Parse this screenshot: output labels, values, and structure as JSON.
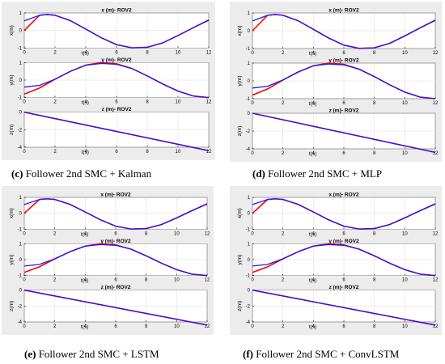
{
  "colors": {
    "reference": "#ff0000",
    "follower": "#1a1aff",
    "plot_bg": "#ffffff",
    "figure_bg": "#ececec",
    "axis": "#000000",
    "grid": "#d9d9d9"
  },
  "captions": [
    {
      "letter": "(c)",
      "text": " Follower 2nd SMC + Kalman"
    },
    {
      "letter": "(d)",
      "text": " Follower 2nd SMC + MLP"
    },
    {
      "letter": "(e)",
      "text": " Follower 2nd SMC + LSTM"
    },
    {
      "letter": "(f)",
      "text": " Follower 2nd SMC + ConvLSTM"
    }
  ],
  "chart_data": [
    {
      "panel": "c",
      "type": "line",
      "title": "x (m)- ROV2",
      "xlabel": "t(s)",
      "ylabel": "x(m)",
      "xlim": [
        0,
        12
      ],
      "ylim": [
        -1,
        1
      ],
      "xticks": [
        0,
        2,
        4,
        6,
        8,
        10,
        12
      ],
      "yticks": [
        -1,
        0,
        1
      ],
      "x": [
        0,
        1,
        1.5,
        2,
        3,
        4,
        5,
        6,
        7,
        8,
        9,
        10,
        11,
        12
      ],
      "series": [
        {
          "values": [
            0.0,
            0.87,
            0.91,
            0.87,
            0.56,
            0.08,
            -0.41,
            -0.81,
            -0.99,
            -0.96,
            -0.71,
            -0.29,
            0.16,
            0.6
          ]
        },
        {
          "values": [
            0.55,
            0.87,
            0.91,
            0.87,
            0.56,
            0.08,
            -0.41,
            -0.81,
            -0.99,
            -0.96,
            -0.71,
            -0.29,
            0.16,
            0.58
          ]
        }
      ]
    },
    {
      "panel": "c",
      "type": "line",
      "title": "y (m)- ROV2",
      "xlabel": "t(s)",
      "ylabel": "y(m)",
      "xlim": [
        0,
        12
      ],
      "ylim": [
        -1,
        1
      ],
      "xticks": [
        0,
        2,
        4,
        6,
        8,
        10,
        12
      ],
      "yticks": [
        -1,
        0,
        1
      ],
      "x": [
        0,
        1,
        2,
        3,
        4,
        5,
        6,
        7,
        8,
        9,
        10,
        11,
        12
      ],
      "series": [
        {
          "values": [
            -0.8,
            -0.45,
            0.05,
            0.5,
            0.85,
            1.0,
            0.93,
            0.66,
            0.24,
            -0.22,
            -0.63,
            -0.91,
            -1.0
          ]
        },
        {
          "values": [
            -0.4,
            -0.3,
            0.05,
            0.5,
            0.85,
            0.95,
            0.9,
            0.66,
            0.24,
            -0.22,
            -0.63,
            -0.91,
            -1.0
          ]
        }
      ]
    },
    {
      "panel": "c",
      "type": "line",
      "title": "z (m)- ROV2",
      "xlabel": "t(s)",
      "ylabel": "z(m)",
      "xlim": [
        0,
        12
      ],
      "ylim": [
        -4,
        0
      ],
      "xticks": [
        0,
        2,
        4,
        6,
        8,
        10,
        12
      ],
      "yticks": [
        -4,
        -2,
        0
      ],
      "x": [
        0,
        12
      ],
      "series": [
        {
          "values": [
            0.0,
            -4.4
          ]
        },
        {
          "values": [
            0.0,
            -4.4
          ]
        }
      ]
    },
    {
      "panel": "d",
      "type": "line",
      "title": "x (m)- ROV2",
      "xlabel": "t(s)",
      "ylabel": "x(m)",
      "xlim": [
        0,
        12
      ],
      "ylim": [
        -1,
        1
      ],
      "xticks": [
        0,
        2,
        4,
        6,
        8,
        10,
        12
      ],
      "yticks": [
        -1,
        0,
        1
      ],
      "x": [
        0,
        1,
        1.5,
        2,
        3,
        4,
        5,
        6,
        7,
        8,
        9,
        10,
        11,
        12
      ],
      "series": [
        {
          "values": [
            0.0,
            0.87,
            0.91,
            0.87,
            0.56,
            0.08,
            -0.41,
            -0.81,
            -0.99,
            -0.96,
            -0.71,
            -0.29,
            0.16,
            0.6
          ]
        },
        {
          "values": [
            0.55,
            0.87,
            0.91,
            0.87,
            0.56,
            0.08,
            -0.41,
            -0.81,
            -0.99,
            -0.96,
            -0.71,
            -0.29,
            0.16,
            0.58
          ]
        }
      ]
    },
    {
      "panel": "d",
      "type": "line",
      "title": "y (m)- ROV2",
      "xlabel": "t(s)",
      "ylabel": "y(m)",
      "xlim": [
        0,
        12
      ],
      "ylim": [
        -1,
        1
      ],
      "xticks": [
        0,
        2,
        4,
        6,
        8,
        10,
        12
      ],
      "yticks": [
        -1,
        0,
        1
      ],
      "x": [
        0,
        1,
        2,
        3,
        4,
        5,
        6,
        7,
        8,
        9,
        10,
        11,
        12
      ],
      "series": [
        {
          "values": [
            -0.8,
            -0.45,
            0.05,
            0.5,
            0.85,
            1.0,
            0.93,
            0.66,
            0.24,
            -0.22,
            -0.63,
            -0.91,
            -1.0
          ]
        },
        {
          "values": [
            -0.4,
            -0.3,
            0.05,
            0.5,
            0.85,
            0.95,
            0.9,
            0.66,
            0.24,
            -0.22,
            -0.63,
            -0.91,
            -1.0
          ]
        }
      ]
    },
    {
      "panel": "d",
      "type": "line",
      "title": "z (m)- ROV2",
      "xlabel": "t(s)",
      "ylabel": "z(m)",
      "xlim": [
        0,
        12
      ],
      "ylim": [
        -4,
        0
      ],
      "xticks": [
        0,
        2,
        4,
        6,
        8,
        10,
        12
      ],
      "yticks": [
        -4,
        -2,
        0
      ],
      "x": [
        0,
        12
      ],
      "series": [
        {
          "values": [
            0.0,
            -4.4
          ]
        },
        {
          "values": [
            0.0,
            -4.4
          ]
        }
      ]
    },
    {
      "panel": "e",
      "type": "line",
      "title": "x (m)- ROV2",
      "xlabel": "t(s)",
      "ylabel": "x(m)",
      "xlim": [
        0,
        12
      ],
      "ylim": [
        -1,
        1
      ],
      "xticks": [
        0,
        2,
        4,
        6,
        8,
        10,
        12
      ],
      "yticks": [
        -1,
        0,
        1
      ],
      "x": [
        0,
        1,
        1.5,
        2,
        3,
        4,
        5,
        6,
        7,
        8,
        9,
        10,
        11,
        12
      ],
      "series": [
        {
          "values": [
            0.0,
            0.87,
            0.91,
            0.87,
            0.56,
            0.08,
            -0.41,
            -0.81,
            -0.99,
            -0.96,
            -0.71,
            -0.29,
            0.16,
            0.6
          ]
        },
        {
          "values": [
            0.55,
            0.87,
            0.91,
            0.87,
            0.56,
            0.08,
            -0.41,
            -0.81,
            -0.99,
            -0.96,
            -0.71,
            -0.29,
            0.16,
            0.58
          ]
        }
      ]
    },
    {
      "panel": "e",
      "type": "line",
      "title": "y (m)- ROV2",
      "xlabel": "t(s)",
      "ylabel": "y(m)",
      "xlim": [
        0,
        12
      ],
      "ylim": [
        -1,
        1
      ],
      "xticks": [
        0,
        2,
        4,
        6,
        8,
        10,
        12
      ],
      "yticks": [
        -1,
        0,
        1
      ],
      "x": [
        0,
        1,
        2,
        3,
        4,
        5,
        6,
        7,
        8,
        9,
        10,
        11,
        12
      ],
      "series": [
        {
          "values": [
            -0.8,
            -0.45,
            0.05,
            0.5,
            0.85,
            1.0,
            0.93,
            0.66,
            0.24,
            -0.22,
            -0.63,
            -0.91,
            -1.0
          ]
        },
        {
          "values": [
            -0.4,
            -0.3,
            0.05,
            0.5,
            0.85,
            0.95,
            0.9,
            0.66,
            0.24,
            -0.22,
            -0.63,
            -0.91,
            -1.0
          ]
        }
      ]
    },
    {
      "panel": "e",
      "type": "line",
      "title": "z (m)- ROV2",
      "xlabel": "t(s)",
      "ylabel": "z(m)",
      "xlim": [
        0,
        12
      ],
      "ylim": [
        -4,
        0
      ],
      "xticks": [
        0,
        2,
        4,
        6,
        8,
        10,
        12
      ],
      "yticks": [
        -4,
        -2,
        0
      ],
      "x": [
        0,
        12
      ],
      "series": [
        {
          "values": [
            0.0,
            -4.4
          ]
        },
        {
          "values": [
            0.0,
            -4.4
          ]
        }
      ]
    },
    {
      "panel": "f",
      "type": "line",
      "title": "x (m)- ROV2",
      "xlabel": "t(s)",
      "ylabel": "x(m)",
      "xlim": [
        0,
        12
      ],
      "ylim": [
        -1,
        1
      ],
      "xticks": [
        0,
        2,
        4,
        6,
        8,
        10,
        12
      ],
      "yticks": [
        -1,
        0,
        1
      ],
      "x": [
        0,
        1,
        1.5,
        2,
        3,
        4,
        5,
        6,
        7,
        8,
        9,
        10,
        11,
        12
      ],
      "series": [
        {
          "values": [
            0.0,
            0.87,
            0.91,
            0.87,
            0.56,
            0.08,
            -0.41,
            -0.81,
            -0.99,
            -0.96,
            -0.71,
            -0.29,
            0.16,
            0.6
          ]
        },
        {
          "values": [
            0.55,
            0.87,
            0.91,
            0.87,
            0.56,
            0.08,
            -0.41,
            -0.81,
            -0.99,
            -0.96,
            -0.71,
            -0.29,
            0.16,
            0.58
          ]
        }
      ]
    },
    {
      "panel": "f",
      "type": "line",
      "title": "y (m)- ROV2",
      "xlabel": "t(s)",
      "ylabel": "y(m)",
      "xlim": [
        0,
        12
      ],
      "ylim": [
        -1,
        1
      ],
      "xticks": [
        0,
        2,
        4,
        6,
        8,
        10,
        12
      ],
      "yticks": [
        -1,
        0,
        1
      ],
      "x": [
        0,
        1,
        2,
        3,
        4,
        5,
        6,
        7,
        8,
        9,
        10,
        11,
        12
      ],
      "series": [
        {
          "values": [
            -0.8,
            -0.45,
            0.05,
            0.5,
            0.85,
            1.0,
            0.93,
            0.66,
            0.24,
            -0.22,
            -0.63,
            -0.91,
            -1.0
          ]
        },
        {
          "values": [
            -0.4,
            -0.3,
            0.05,
            0.5,
            0.85,
            0.95,
            0.9,
            0.66,
            0.24,
            -0.22,
            -0.63,
            -0.91,
            -1.0
          ]
        }
      ]
    },
    {
      "panel": "f",
      "type": "line",
      "title": "z (m)- ROV2",
      "xlabel": "t(s)",
      "ylabel": "z(m)",
      "xlim": [
        0,
        12
      ],
      "ylim": [
        -4,
        0
      ],
      "xticks": [
        0,
        2,
        4,
        6,
        8,
        10,
        12
      ],
      "yticks": [
        -4,
        -2,
        0
      ],
      "x": [
        0,
        12
      ],
      "series": [
        {
          "values": [
            0.0,
            -4.4
          ]
        },
        {
          "values": [
            0.0,
            -4.4
          ]
        }
      ]
    }
  ]
}
